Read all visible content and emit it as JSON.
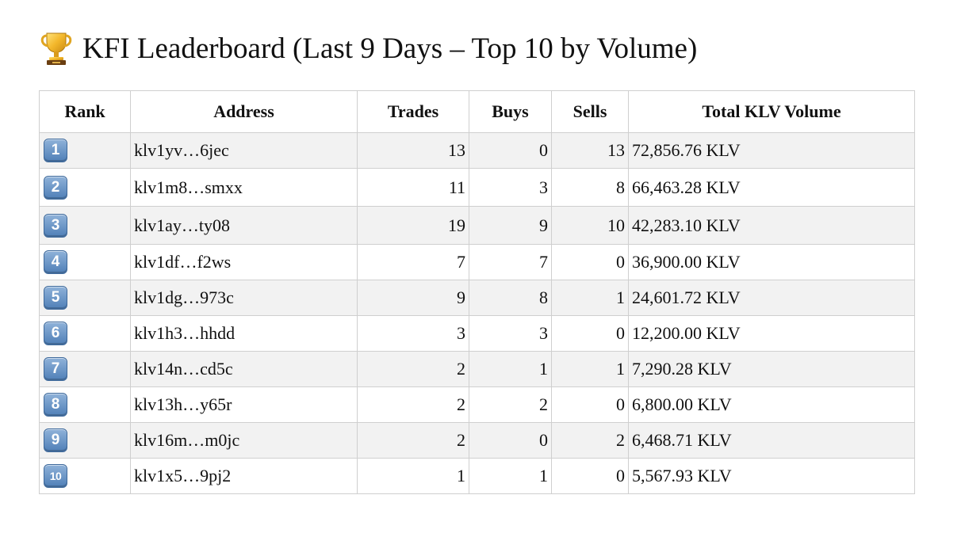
{
  "page": {
    "title_icon": "trophy-icon",
    "title": "KFI Leaderboard (Last 9 Days – Top 10 by Volume)"
  },
  "table": {
    "headers": {
      "rank": "Rank",
      "address": "Address",
      "trades": "Trades",
      "buys": "Buys",
      "sells": "Sells",
      "volume": "Total KLV Volume"
    },
    "rows": [
      {
        "rank": "1",
        "address": "klv1yv…6jec",
        "trades": "13",
        "buys": "0",
        "sells": "13",
        "volume": "72,856.76 KLV"
      },
      {
        "rank": "2",
        "address": "klv1m8…smxx",
        "trades": "11",
        "buys": "3",
        "sells": "8",
        "volume": "66,463.28 KLV"
      },
      {
        "rank": "3",
        "address": "klv1ay…ty08",
        "trades": "19",
        "buys": "9",
        "sells": "10",
        "volume": "42,283.10 KLV"
      },
      {
        "rank": "4",
        "address": "klv1df…f2ws",
        "trades": "7",
        "buys": "7",
        "sells": "0",
        "volume": "36,900.00 KLV"
      },
      {
        "rank": "5",
        "address": "klv1dg…973c",
        "trades": "9",
        "buys": "8",
        "sells": "1",
        "volume": "24,601.72 KLV"
      },
      {
        "rank": "6",
        "address": "klv1h3…hhdd",
        "trades": "3",
        "buys": "3",
        "sells": "0",
        "volume": "12,200.00 KLV"
      },
      {
        "rank": "7",
        "address": "klv14n…cd5c",
        "trades": "2",
        "buys": "1",
        "sells": "1",
        "volume": "7,290.28 KLV"
      },
      {
        "rank": "8",
        "address": "klv13h…y65r",
        "trades": "2",
        "buys": "2",
        "sells": "0",
        "volume": "6,800.00 KLV"
      },
      {
        "rank": "9",
        "address": "klv16m…m0jc",
        "trades": "2",
        "buys": "0",
        "sells": "2",
        "volume": "6,468.71 KLV"
      },
      {
        "rank": "10",
        "address": "klv1x5…9pj2",
        "trades": "1",
        "buys": "1",
        "sells": "0",
        "volume": "5,567.93 KLV"
      }
    ]
  },
  "colors": {
    "row_stripe": "#f2f2f2",
    "border": "#cfcfcf",
    "keycap": "#5d8cc2"
  }
}
